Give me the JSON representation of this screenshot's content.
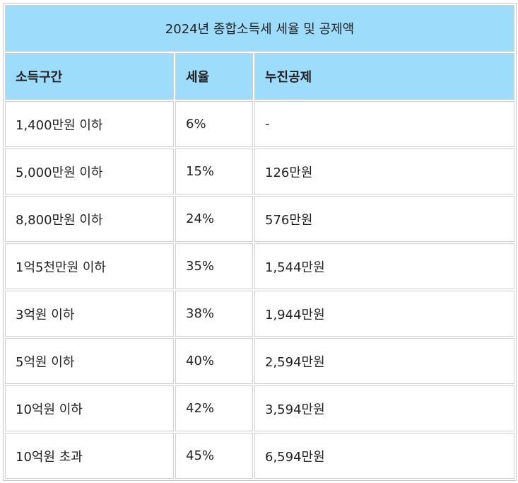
{
  "table": {
    "title": "2024년 종합소득세 세율 및 공제액",
    "headers": [
      "소득구간",
      "세율",
      "누진공제"
    ],
    "rows": [
      [
        "1,400만원 이하",
        "6%",
        "-"
      ],
      [
        "5,000만원 이하",
        "15%",
        "126만원"
      ],
      [
        "8,800만원 이하",
        "24%",
        "576만원"
      ],
      [
        "1억5천만원 이하",
        "35%",
        "1,544만원"
      ],
      [
        "3억원 이하",
        "38%",
        "1,944만원"
      ],
      [
        "5억원 이하",
        "40%",
        "2,594만원"
      ],
      [
        "10억원 이하",
        "42%",
        "3,594만원"
      ],
      [
        "10억원 초과",
        "45%",
        "6,594만원"
      ]
    ]
  },
  "colors": {
    "header_background": "#9edcfb",
    "border": "#cfcfcf"
  }
}
